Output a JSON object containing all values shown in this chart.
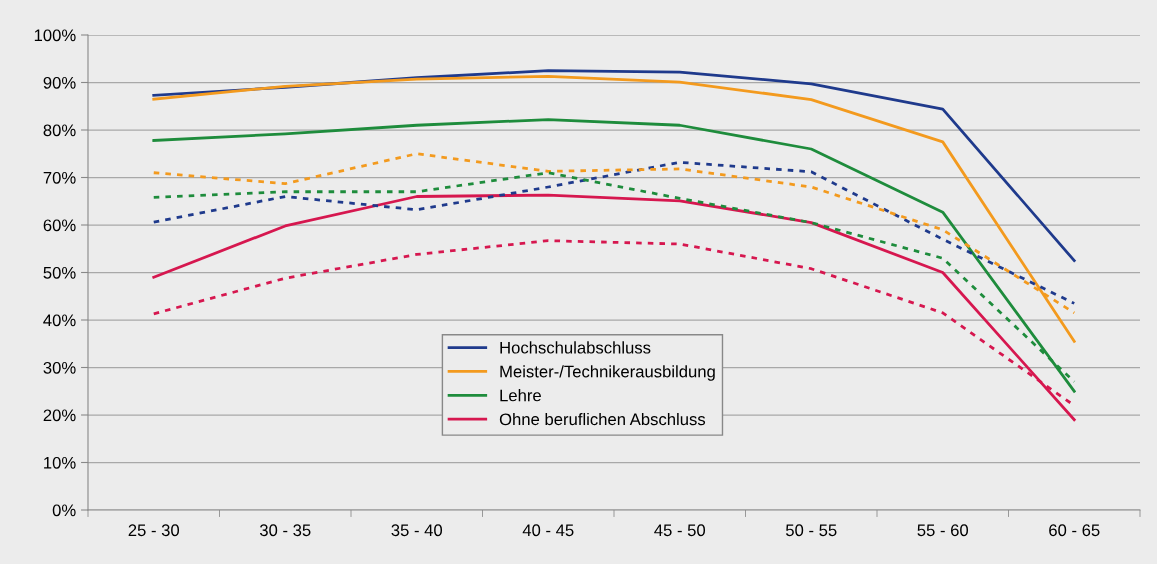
{
  "chart_data": {
    "type": "line",
    "categories": [
      "25 - 30",
      "30 - 35",
      "35 - 40",
      "40 - 45",
      "45 - 50",
      "50 - 55",
      "55 - 60",
      "60 - 65"
    ],
    "ylim": [
      0,
      100
    ],
    "yticks": [
      {
        "value": 0,
        "label": "0%"
      },
      {
        "value": 10,
        "label": "10%"
      },
      {
        "value": 20,
        "label": "20%"
      },
      {
        "value": 30,
        "label": "30%"
      },
      {
        "value": 40,
        "label": "40%"
      },
      {
        "value": 50,
        "label": "50%"
      },
      {
        "value": 60,
        "label": "60%"
      },
      {
        "value": 70,
        "label": "70%"
      },
      {
        "value": 80,
        "label": "80%"
      },
      {
        "value": 90,
        "label": "90%"
      },
      {
        "value": 100,
        "label": "100%"
      }
    ],
    "grid": "y",
    "legend": "bottom",
    "marker": "none",
    "series": [
      {
        "name": "Hochschulabschluss",
        "color": "#1f3a8c",
        "line_style": "solid",
        "values": [
          87.3,
          89,
          91,
          92.5,
          92.2,
          89.7,
          84.4,
          52.5
        ]
      },
      {
        "name": "Meister-/Technikerausbildung",
        "color": "#f39a1e",
        "line_style": "solid",
        "values": [
          86.5,
          89.2,
          90.7,
          91.3,
          90.1,
          86.4,
          77.5,
          35.5
        ]
      },
      {
        "name": "Lehre",
        "color": "#1e8c3c",
        "line_style": "solid",
        "values": [
          77.8,
          79.2,
          81,
          82.2,
          81,
          76,
          62.7,
          25
        ]
      },
      {
        "name": "Ohne beruflichen Abschluss",
        "color": "#d6174f",
        "line_style": "solid",
        "values": [
          49,
          59.8,
          66,
          66.3,
          65.1,
          60.5,
          50,
          19
        ]
      },
      {
        "color": "#1f3a8c",
        "line_style": "dotted",
        "values": [
          60.6,
          66,
          63.2,
          68,
          73.2,
          71.2,
          57,
          43.5
        ]
      },
      {
        "color": "#f39a1e",
        "line_style": "dotted",
        "values": [
          71,
          68.7,
          75,
          71.3,
          71.8,
          68,
          59,
          41.5
        ]
      },
      {
        "color": "#1e8c3c",
        "line_style": "dotted",
        "values": [
          65.8,
          67,
          67,
          71,
          65.6,
          60.5,
          53,
          27
        ]
      },
      {
        "color": "#d6174f",
        "line_style": "dotted",
        "values": [
          41.3,
          48.8,
          53.8,
          56.7,
          56,
          50.8,
          41.5,
          22
        ]
      }
    ]
  }
}
